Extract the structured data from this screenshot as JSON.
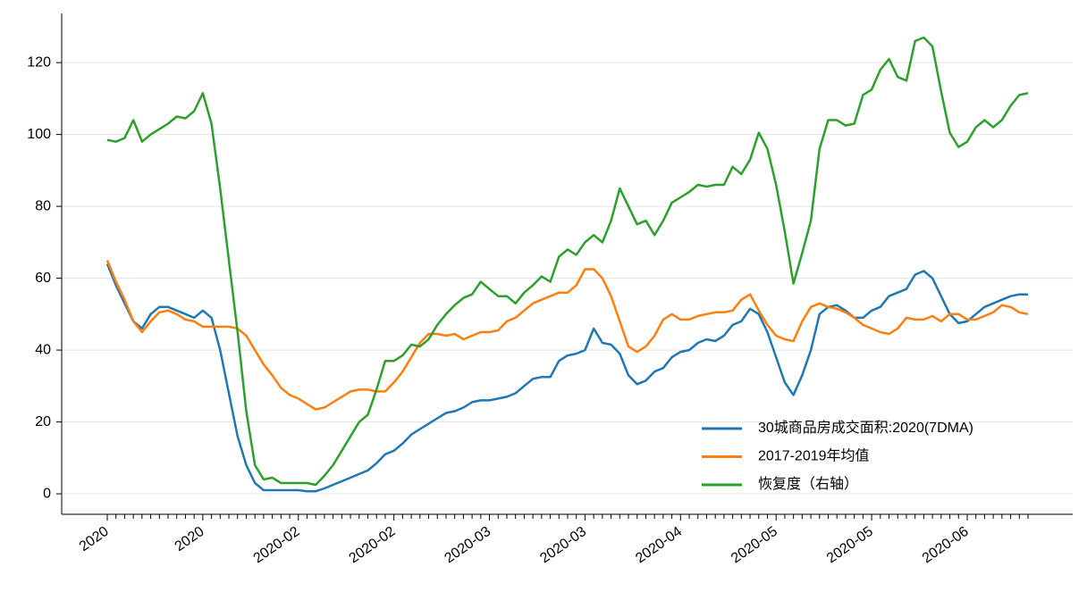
{
  "chart_data": {
    "type": "line",
    "categories": [
      "2020",
      null,
      null,
      null,
      null,
      null,
      null,
      null,
      null,
      null,
      null,
      "2020",
      null,
      null,
      null,
      null,
      null,
      null,
      null,
      null,
      null,
      null,
      "2020-02",
      null,
      null,
      null,
      null,
      null,
      null,
      null,
      null,
      null,
      null,
      "2020-02",
      null,
      null,
      null,
      null,
      null,
      null,
      null,
      null,
      null,
      null,
      "2020-03",
      null,
      null,
      null,
      null,
      null,
      null,
      null,
      null,
      null,
      null,
      "2020-03",
      null,
      null,
      null,
      null,
      null,
      null,
      null,
      null,
      null,
      null,
      "2020-04",
      null,
      null,
      null,
      null,
      null,
      null,
      null,
      null,
      null,
      null,
      "2020-05",
      null,
      null,
      null,
      null,
      null,
      null,
      null,
      null,
      null,
      null,
      "2020-05",
      null,
      null,
      null,
      null,
      null,
      null,
      null,
      null,
      null,
      null,
      "2020-06",
      null,
      null,
      null,
      null,
      null,
      null,
      null
    ],
    "series": [
      {
        "name": "30城商品房成交面积:2020(7DMA)",
        "color": "#1f77b4",
        "values": [
          64,
          58,
          53,
          48,
          46,
          50,
          52,
          52,
          51,
          50,
          49,
          51,
          49,
          40,
          28,
          16,
          8,
          3,
          1,
          1,
          1,
          1,
          1,
          0.7,
          0.7,
          1.5,
          2.5,
          3.5,
          4.5,
          5.5,
          6.5,
          8.5,
          11,
          12,
          14,
          16.5,
          18,
          19.5,
          21,
          22.5,
          23,
          24,
          25.5,
          26,
          26,
          26.5,
          27,
          28,
          30,
          32,
          32.5,
          32.5,
          37,
          38.5,
          39,
          40,
          46,
          42,
          41.5,
          39,
          33,
          30.5,
          31.5,
          34,
          35,
          38,
          39.5,
          40,
          42,
          43,
          42.5,
          44,
          47,
          48,
          51.5,
          50,
          45,
          38,
          31,
          27.5,
          33,
          40,
          50,
          52,
          52.5,
          51,
          49,
          49,
          51,
          52,
          55,
          56,
          57,
          61,
          62,
          60,
          55,
          50,
          47.5,
          48,
          50,
          52,
          53,
          54,
          55,
          55.5,
          55.5
        ]
      },
      {
        "name": "2017-2019年均值",
        "color": "#ff7f0e",
        "values": [
          65,
          59,
          54,
          48,
          45,
          48,
          50.5,
          51,
          50,
          48.5,
          48,
          46.5,
          46.5,
          46.5,
          46.5,
          46,
          44,
          40,
          36,
          33,
          29.5,
          27.5,
          26.5,
          25,
          23.5,
          24,
          25.5,
          27,
          28.5,
          29,
          29,
          28.5,
          28.5,
          31,
          34,
          38,
          42,
          44.5,
          44.5,
          44,
          44.5,
          43,
          44,
          45,
          45,
          45.5,
          48,
          49,
          51,
          53,
          54,
          55,
          56,
          56,
          58,
          62.5,
          62.5,
          60,
          55,
          48,
          41,
          39.5,
          41,
          44,
          48.5,
          50,
          48.5,
          48.5,
          49.5,
          50,
          50.5,
          50.5,
          51,
          54,
          55.5,
          51,
          47,
          44,
          43,
          42.5,
          48,
          52,
          53,
          52,
          51.5,
          50.5,
          49,
          47,
          46,
          45,
          44.5,
          46,
          49,
          48.5,
          48.5,
          49.5,
          48,
          50,
          50,
          48.5,
          48.5,
          49.5,
          50.5,
          52.5,
          52,
          50.5,
          50
        ]
      },
      {
        "name": "恢复度（右轴）",
        "color": "#2ca02c",
        "values": [
          98.5,
          98,
          99,
          104,
          98,
          100,
          101.5,
          103,
          105,
          104.5,
          106.5,
          111.5,
          103,
          85,
          65,
          45,
          23,
          8,
          4,
          4.5,
          3,
          3,
          3,
          3,
          2.5,
          5,
          8,
          12,
          16,
          20,
          22,
          29,
          37,
          37,
          38.5,
          41.5,
          41,
          43,
          47,
          50,
          52.5,
          54.5,
          55.5,
          59,
          57,
          55,
          55,
          53,
          56,
          58,
          60.5,
          59,
          66,
          68,
          66.5,
          70,
          72,
          70,
          76,
          85,
          80,
          75,
          76,
          72,
          76,
          81,
          82.5,
          84,
          86,
          85.5,
          86,
          86,
          91,
          89,
          93,
          100.5,
          96,
          86,
          73,
          58.5,
          67,
          76,
          96,
          104,
          104,
          102.5,
          103,
          111,
          112.5,
          118,
          121,
          116,
          115,
          126,
          127,
          124.5,
          112,
          100.5,
          96.5,
          98,
          102,
          104,
          102,
          104,
          108,
          111,
          111.5
        ]
      }
    ],
    "ylim": [
      -5.7,
      133.7
    ],
    "yticks": [
      0,
      20,
      40,
      60,
      80,
      100,
      120
    ],
    "grid": true,
    "legend": "lower right"
  }
}
